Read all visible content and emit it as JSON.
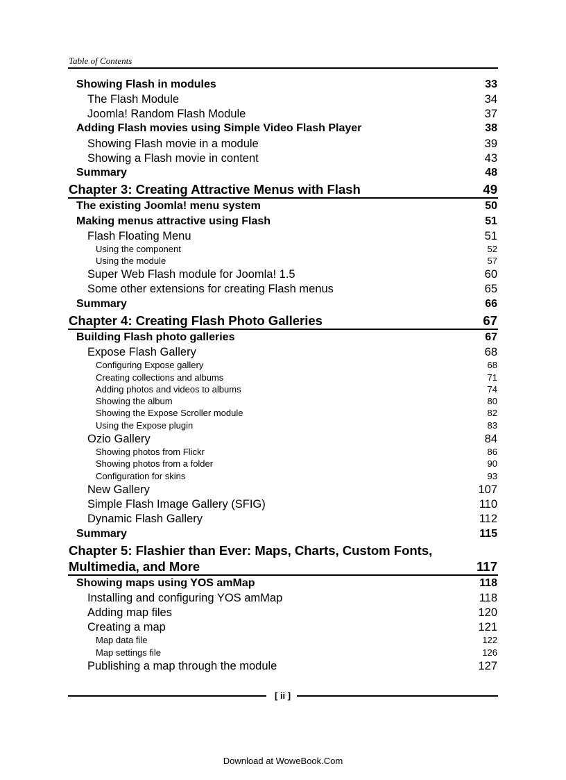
{
  "header": {
    "running_title": "Table of Contents"
  },
  "entries": [
    {
      "level": "l1",
      "title": "Showing Flash in modules",
      "page": "33"
    },
    {
      "level": "l2",
      "title": "The Flash Module",
      "page": "34"
    },
    {
      "level": "l2",
      "title": "Joomla! Random Flash Module",
      "page": "37"
    },
    {
      "level": "l1",
      "title": "Adding Flash movies using Simple Video Flash Player",
      "page": "38"
    },
    {
      "level": "l2",
      "title": "Showing Flash movie in a module",
      "page": "39"
    },
    {
      "level": "l2",
      "title": "Showing a Flash movie in content",
      "page": "43"
    },
    {
      "level": "l1",
      "title": "Summary",
      "page": "48"
    },
    {
      "level": "ch",
      "title": "Chapter 3: Creating Attractive Menus with Flash",
      "page": "49"
    },
    {
      "level": "l1",
      "title": "The existing Joomla! menu system",
      "page": "50"
    },
    {
      "level": "l1",
      "title": "Making menus attractive using Flash",
      "page": "51"
    },
    {
      "level": "l2",
      "title": "Flash Floating Menu",
      "page": "51"
    },
    {
      "level": "l3",
      "title": "Using the component",
      "page": "52"
    },
    {
      "level": "l3",
      "title": "Using the module",
      "page": "57"
    },
    {
      "level": "l2",
      "title": "Super Web Flash module for Joomla! 1.5",
      "page": "60"
    },
    {
      "level": "l2",
      "title": "Some other extensions for creating Flash menus",
      "page": "65"
    },
    {
      "level": "l1",
      "title": "Summary",
      "page": "66"
    },
    {
      "level": "ch",
      "title": "Chapter 4: Creating Flash Photo Galleries",
      "page": "67"
    },
    {
      "level": "l1",
      "title": "Building Flash photo galleries",
      "page": "67"
    },
    {
      "level": "l2",
      "title": "Expose Flash Gallery",
      "page": "68"
    },
    {
      "level": "l3",
      "title": "Configuring Expose gallery",
      "page": "68"
    },
    {
      "level": "l3",
      "title": "Creating collections and albums",
      "page": "71"
    },
    {
      "level": "l3",
      "title": "Adding photos and videos to albums",
      "page": "74"
    },
    {
      "level": "l3",
      "title": "Showing the album",
      "page": "80"
    },
    {
      "level": "l3",
      "title": "Showing the Expose Scroller module",
      "page": "82"
    },
    {
      "level": "l3",
      "title": "Using the Expose plugin",
      "page": "83"
    },
    {
      "level": "l2",
      "title": "Ozio Gallery",
      "page": "84"
    },
    {
      "level": "l3",
      "title": "Showing photos from Flickr",
      "page": "86"
    },
    {
      "level": "l3",
      "title": "Showing photos from a folder",
      "page": "90"
    },
    {
      "level": "l3",
      "title": "Configuration for skins",
      "page": "93"
    },
    {
      "level": "l2",
      "title": "New Gallery",
      "page": "107"
    },
    {
      "level": "l2",
      "title": "Simple Flash Image Gallery (SFIG)",
      "page": "110"
    },
    {
      "level": "l2",
      "title": "Dynamic Flash Gallery",
      "page": "112"
    },
    {
      "level": "l1",
      "title": "Summary",
      "page": "115"
    },
    {
      "level": "ch",
      "title": "Chapter 5: Flashier than Ever: Maps, Charts, Custom Fonts,",
      "page": ""
    },
    {
      "level": "ch",
      "title": "Multimedia, and More",
      "page": "117"
    },
    {
      "level": "l1",
      "title": "Showing maps using YOS amMap",
      "page": "118"
    },
    {
      "level": "l2",
      "title": "Installing and configuring YOS amMap",
      "page": "118"
    },
    {
      "level": "l2",
      "title": "Adding map files",
      "page": "120"
    },
    {
      "level": "l2",
      "title": "Creating a map",
      "page": "121"
    },
    {
      "level": "l3",
      "title": "Map data file",
      "page": "122"
    },
    {
      "level": "l3",
      "title": "Map settings file",
      "page": "126"
    },
    {
      "level": "l2",
      "title": "Publishing a map through the module",
      "page": "127"
    }
  ],
  "footer": {
    "page_number": "[ ii ]",
    "download_note": "Download at WoweBook.Com"
  }
}
